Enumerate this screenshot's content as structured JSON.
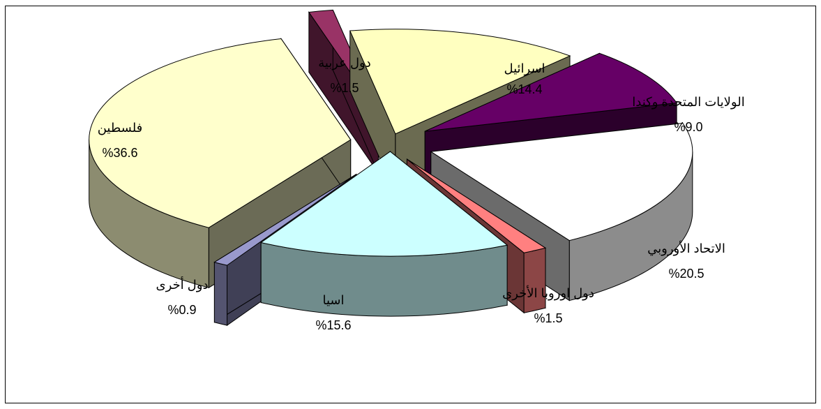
{
  "chart_data": {
    "type": "pie",
    "style": "3d-exploded",
    "title": "",
    "legend": "none",
    "value_format": "%{value}",
    "slices": [
      {
        "label": "اسرائيل",
        "value": 14.4,
        "value_label": "%14.4",
        "color": "#ffffc0"
      },
      {
        "label": "الولايات المتحدة وكندا",
        "value": 9.0,
        "value_label": "%9.0",
        "color": "#660066"
      },
      {
        "label": "الاتحاد الأوروبي",
        "value": 20.5,
        "value_label": "%20.5",
        "color": "#ffffff"
      },
      {
        "label": "دول اوروبا الأخرى",
        "value": 1.5,
        "value_label": "%1.5",
        "color": "#ff8080"
      },
      {
        "label": "اسيا",
        "value": 15.6,
        "value_label": "%15.6",
        "color": "#ccffff"
      },
      {
        "label": "دول أخرى",
        "value": 0.9,
        "value_label": "%0.9",
        "color": "#9999cc"
      },
      {
        "label": "فلسطين",
        "value": 36.6,
        "value_label": "%36.6",
        "color": "#ffffcc"
      },
      {
        "label": "دول عربية",
        "value": 1.5,
        "value_label": "%1.5",
        "color": "#993366"
      }
    ]
  }
}
